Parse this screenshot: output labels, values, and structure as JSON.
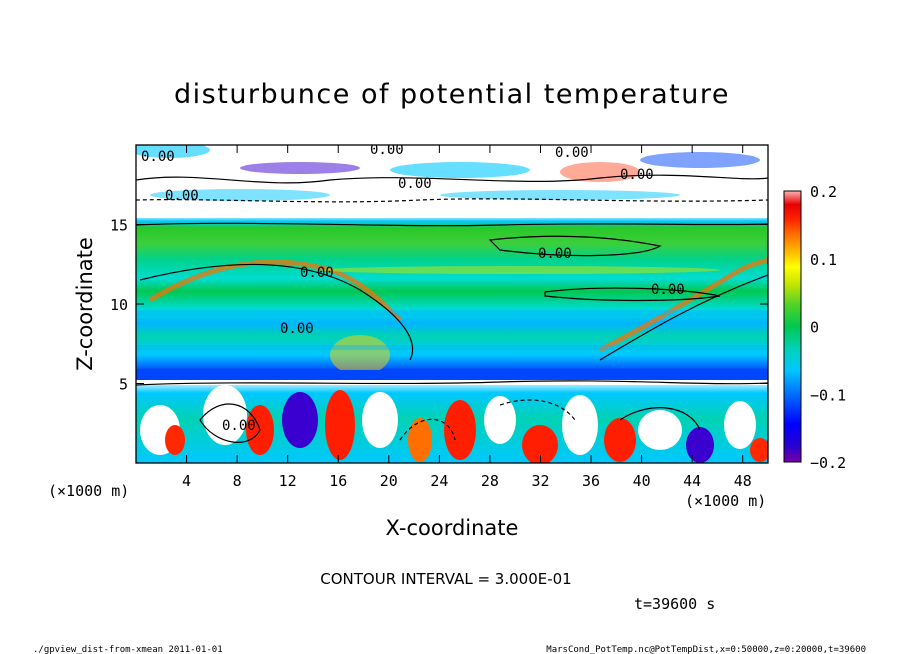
{
  "chart_data": {
    "type": "heatmap",
    "title": "disturbunce of potential temperature",
    "xlabel": "X-coordinate",
    "ylabel": "Z-coordinate",
    "x_unit_left": "(×1000 m)",
    "x_unit_right": "(×1000 m)",
    "xlim": [
      0,
      50
    ],
    "ylim": [
      0,
      20
    ],
    "x_ticks": [
      "4",
      "8",
      "12",
      "16",
      "20",
      "24",
      "28",
      "32",
      "36",
      "40",
      "44",
      "48"
    ],
    "y_ticks": [
      "5",
      "10",
      "15"
    ],
    "colorbar": {
      "range": [
        -0.2,
        0.2
      ],
      "tick_labels": [
        "0.2",
        "0.1",
        "0",
        "−0.1",
        "−0.2"
      ],
      "colors": [
        "#7a00a6",
        "#3a00d0",
        "#0000ff",
        "#0046ff",
        "#008cff",
        "#00c8ff",
        "#00e6e6",
        "#00d2a0",
        "#00c850",
        "#32d232",
        "#78dc1e",
        "#c8e600",
        "#ffff00",
        "#ffd200",
        "#ffa000",
        "#ff6e00",
        "#ff2800",
        "#e60000",
        "#ff8c8c",
        "#ffc8c8"
      ]
    },
    "contour_labels": [
      "0.00",
      "0.00",
      "0.00",
      "0.00",
      "0.00",
      "0.00",
      "0.00",
      "0.00",
      "0.00",
      "0.00",
      "0.00"
    ],
    "contour_interval_text": "CONTOUR INTERVAL = 3.000E-01",
    "time_text": "t=39600 s"
  },
  "footer": {
    "left": "./gpview_dist-from-xmean 2011-01-01",
    "right": "MarsCond_PotTemp.nc@PotTempDist,x=0:50000,z=0:20000,t=39600"
  }
}
